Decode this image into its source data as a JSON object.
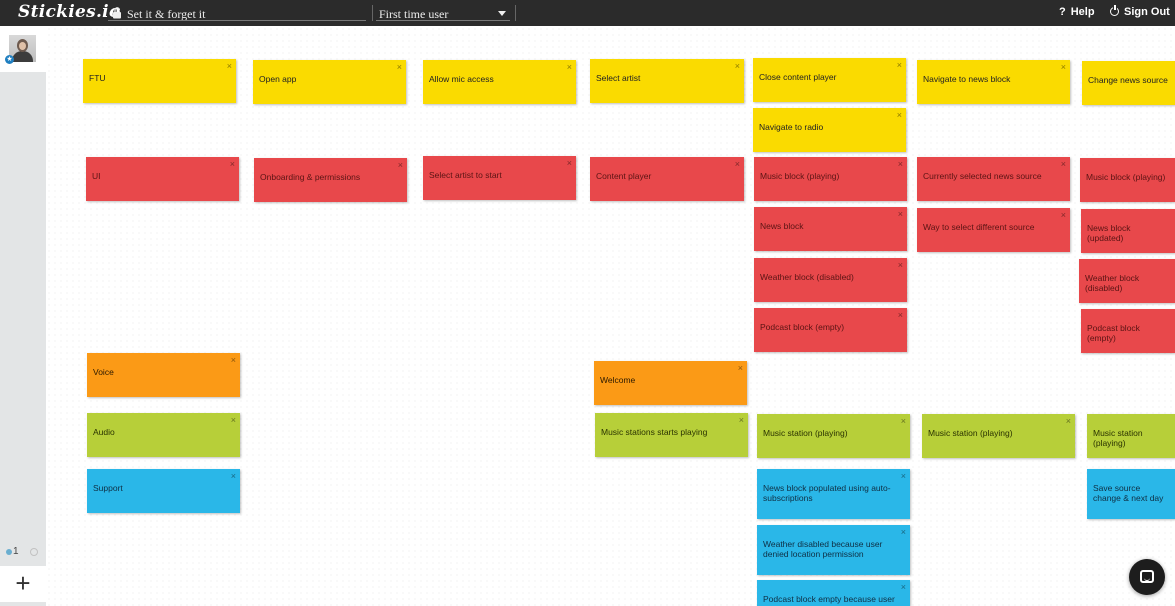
{
  "app": {
    "logo": "Stickies.io"
  },
  "header": {
    "board_title": "Set it & forget it",
    "user_select": "First time user",
    "help_icon": "?",
    "help_label": "Help",
    "signout_label": "Sign Out"
  },
  "sidebar": {
    "expand_glyph": "»",
    "page_number": "1",
    "add_glyph": "+"
  },
  "colors": {
    "yellow": "#fadb00",
    "red": "#e8484b",
    "orange": "#fb9a16",
    "green": "#b7cf39",
    "blue": "#2ab7e8",
    "topbar": "#2b2b2b"
  },
  "close_glyph": "×",
  "stickies": [
    {
      "text": "FTU",
      "color": "yellow"
    },
    {
      "text": "Open app",
      "color": "yellow"
    },
    {
      "text": "Allow mic access",
      "color": "yellow"
    },
    {
      "text": "Select artist",
      "color": "yellow"
    },
    {
      "text": "Close content player",
      "color": "yellow"
    },
    {
      "text": "Navigate to news block",
      "color": "yellow"
    },
    {
      "text": "Change news source",
      "color": "yellow"
    },
    {
      "text": "Navigate to radio",
      "color": "yellow"
    },
    {
      "text": "UI",
      "color": "red"
    },
    {
      "text": "Onboarding & permissions",
      "color": "red"
    },
    {
      "text": "Select artist to start",
      "color": "red"
    },
    {
      "text": "Content player",
      "color": "red"
    },
    {
      "text": "Music block (playing)",
      "color": "red"
    },
    {
      "text": "Currently selected news source",
      "color": "red"
    },
    {
      "text": "Music block (playing)",
      "color": "red"
    },
    {
      "text": "News block",
      "color": "red"
    },
    {
      "text": "Way to select different source",
      "color": "red"
    },
    {
      "text": "News block (updated)",
      "color": "red"
    },
    {
      "text": "Weather block (disabled)",
      "color": "red"
    },
    {
      "text": "Weather block (disabled)",
      "color": "red"
    },
    {
      "text": "Podcast block (empty)",
      "color": "red"
    },
    {
      "text": "Podcast block (empty)",
      "color": "red"
    },
    {
      "text": "Voice",
      "color": "orange"
    },
    {
      "text": "Welcome",
      "color": "orange"
    },
    {
      "text": "Audio",
      "color": "green"
    },
    {
      "text": "Music stations starts playing",
      "color": "green"
    },
    {
      "text": "Music station (playing)",
      "color": "green"
    },
    {
      "text": "Music station (playing)",
      "color": "green"
    },
    {
      "text": "Music station (playing)",
      "color": "green"
    },
    {
      "text": "Support",
      "color": "blue"
    },
    {
      "text": "News block populated using auto-subscriptions",
      "color": "blue"
    },
    {
      "text": "Save source change & next day",
      "color": "blue"
    },
    {
      "text": "Weather disabled because user denied location permission",
      "color": "blue"
    },
    {
      "text": "Podcast block empty because user",
      "color": "blue"
    }
  ]
}
